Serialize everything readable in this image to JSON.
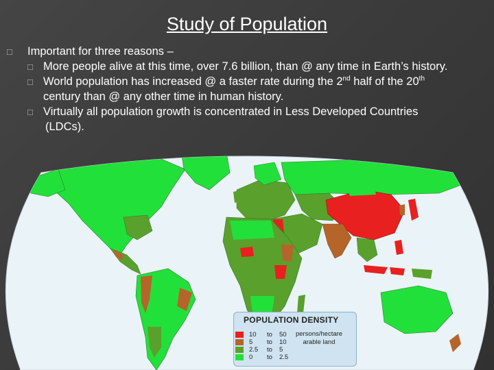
{
  "slide": {
    "title": "Study of Population",
    "bullet_main": "Important for three reasons –",
    "sub_bullets": [
      {
        "text": "More people alive at this time, over 7.6 billion, than @ any time in Earth’s history."
      },
      {
        "text_a": "World population has increased @ a faster rate during the 2",
        "sup_a": "nd",
        "text_b": " half of the 20",
        "sup_b": "th",
        "text_c": "century than @ any other time in human history."
      },
      {
        "text_a": "Virtually all population growth is concentrated in Less Developed Countries",
        "text_b": "(LDCs)."
      }
    ],
    "bullet_glyph": "□"
  },
  "legend": {
    "title": "POPULATION DENSITY",
    "rows": [
      {
        "from": "10",
        "to_word": "to",
        "to": "50"
      },
      {
        "from": "5",
        "to_word": "to",
        "to": "10"
      },
      {
        "from": "2.5",
        "to_word": "to",
        "to": "5"
      },
      {
        "from": "0",
        "to_word": "to",
        "to": "2.5"
      }
    ],
    "note_line1": "persons/hectare",
    "note_line2": "arable land"
  },
  "colors": {
    "background": "#3a3a3a",
    "ocean": "#eaf3f7",
    "density_10_50": "#e82020",
    "density_5_10": "#b5652a",
    "density_2_5_5": "#5aa02c",
    "density_0_2_5": "#22e03a"
  }
}
